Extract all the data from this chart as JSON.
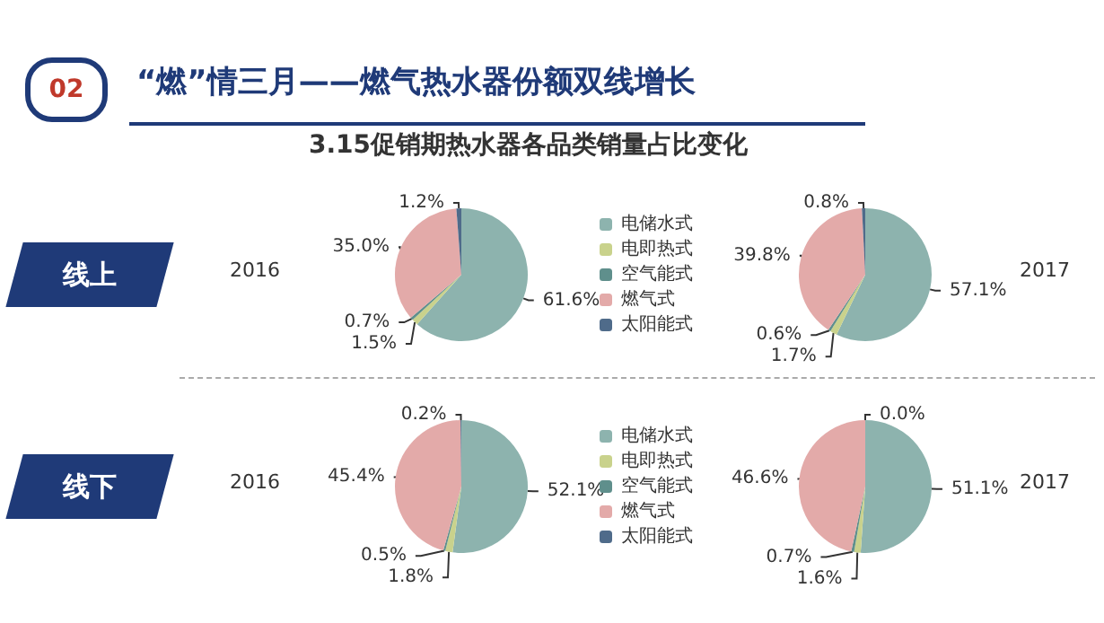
{
  "chart_data": [
    {
      "type": "pie",
      "title": "“燃”情三月——燃气热水器份额双线增长",
      "subtitle": "3.15促销期热水器各品类销量占比变化",
      "ylabel": "线上",
      "annotations": [
        "02",
        "2016"
      ],
      "legend": "right",
      "categories": [
        "电储水式",
        "电即热式",
        "空气能式",
        "燃气式",
        "太阳能式"
      ],
      "values": [
        61.6,
        1.5,
        0.7,
        35.0,
        1.2
      ],
      "value_labels": [
        "61.6%",
        "1.5%",
        "0.7%",
        "35.0%",
        "1.2%"
      ],
      "colors": [
        "#8db3ae",
        "#c9d28c",
        "#5f8f8c",
        "#e3aaa9",
        "#4f6b8a"
      ]
    },
    {
      "type": "pie",
      "annotations": [
        "2017"
      ],
      "categories": [
        null,
        null,
        null,
        null,
        null
      ],
      "values": [
        57.1,
        1.7,
        0.6,
        39.8,
        0.8
      ],
      "value_labels": [
        "57.1%",
        "1.7%",
        "0.6%",
        "39.8%",
        "0.8%"
      ],
      "colors": [
        "#8db3ae",
        "#c9d28c",
        "#5f8f8c",
        "#e3aaa9",
        "#4f6b8a"
      ]
    },
    {
      "type": "pie",
      "ylabel": "线下",
      "annotations": [
        "2016"
      ],
      "legend": "right",
      "categories": [
        "电储水式",
        "电即热式",
        "空气能式",
        "燃气式",
        "太阳能式"
      ],
      "values": [
        52.1,
        1.8,
        0.5,
        45.4,
        0.2
      ],
      "value_labels": [
        "52.1%",
        "1.8%",
        "0.5%",
        "45.4%",
        "0.2%"
      ],
      "colors": [
        "#8db3ae",
        "#c9d28c",
        "#5f8f8c",
        "#e3aaa9",
        "#4f6b8a"
      ]
    },
    {
      "type": "pie",
      "annotations": [
        "2017"
      ],
      "categories": [
        null,
        null,
        null,
        null,
        null
      ],
      "values": [
        51.1,
        1.6,
        0.7,
        46.6,
        0.0
      ],
      "value_labels": [
        "51.1%",
        "1.6%",
        "0.7%",
        "46.6%",
        "0.0%"
      ],
      "colors": [
        "#8db3ae",
        "#c9d28c",
        "#5f8f8c",
        "#e3aaa9",
        "#4f6b8a"
      ]
    }
  ]
}
